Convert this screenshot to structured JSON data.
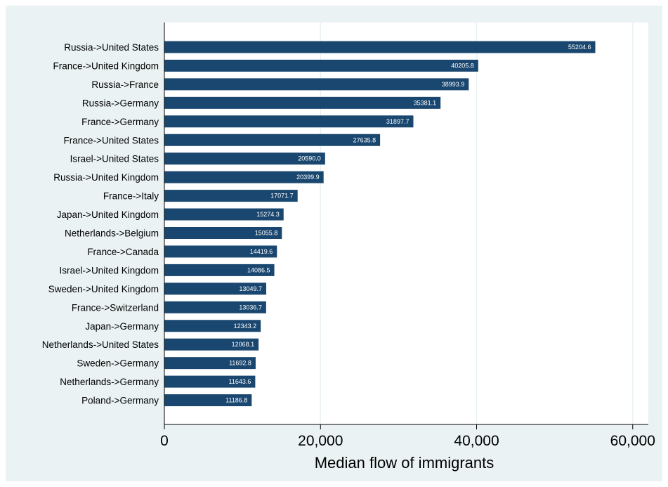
{
  "chart_data": {
    "type": "bar",
    "orientation": "horizontal",
    "title": "",
    "xlabel": "Median flow of immigrants",
    "ylabel": "",
    "xlim": [
      0,
      62000
    ],
    "xticks": [
      0,
      20000,
      40000,
      60000
    ],
    "xtick_labels": [
      "0",
      "20,000",
      "40,000",
      "60,000"
    ],
    "grid": true,
    "bar_color": "#1a476f",
    "plot_background": "#ffffff",
    "outer_background": "#eaf2f3",
    "grid_color": "#eaf2f3",
    "categories": [
      "Russia->United States",
      "France->United Kingdom",
      "Russia->France",
      "Russia->Germany",
      "France->Germany",
      "France->United States",
      "Israel->United States",
      "Russia->United Kingdom",
      "France->Italy",
      "Japan->United Kingdom",
      "Netherlands->Belgium",
      "France->Canada",
      "Israel->United Kingdom",
      "Sweden->United Kingdom",
      "France->Switzerland",
      "Japan->Germany",
      "Netherlands->United States",
      "Sweden->Germany",
      "Netherlands->Germany",
      "Poland->Germany"
    ],
    "values": [
      55204.6,
      40205.8,
      38993.9,
      35381.1,
      31897.7,
      27635.8,
      20590.0,
      20399.9,
      17071.7,
      15274.3,
      15055.8,
      14419.6,
      14086.5,
      13049.7,
      13036.7,
      12343.2,
      12068.1,
      11692.8,
      11643.6,
      11186.8
    ],
    "value_labels": [
      "55204.6",
      "40205.8",
      "38993.9",
      "35381.1",
      "31897.7",
      "27635.8",
      "20590.0",
      "20399.9",
      "17071.7",
      "15274.3",
      "15055.8",
      "14419.6",
      "14086.5",
      "13049.7",
      "13036.7",
      "12343.2",
      "12068.1",
      "11692.8",
      "11643.6",
      "11186.8"
    ]
  }
}
